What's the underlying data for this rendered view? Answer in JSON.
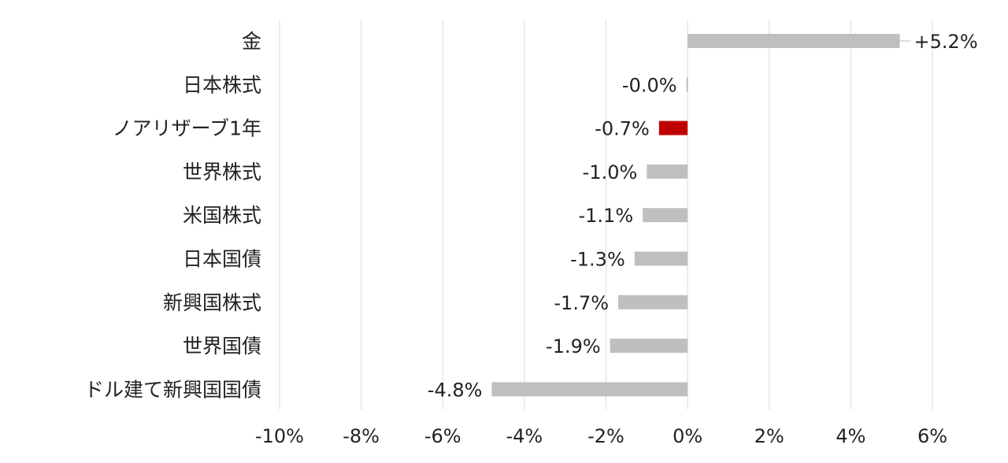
{
  "chart_data": {
    "type": "bar",
    "orientation": "horizontal",
    "title": "",
    "xlabel": "",
    "ylabel": "",
    "categories": [
      "金",
      "日本株式",
      "ノアリザーブ1年",
      "世界株式",
      "米国株式",
      "日本国債",
      "新興国株式",
      "世界国債",
      "ドル建て新興国国債"
    ],
    "values": [
      5.2,
      -0.03,
      -0.7,
      -1.0,
      -1.1,
      -1.3,
      -1.7,
      -1.9,
      -4.8
    ],
    "data_labels": [
      "+5.2%",
      "-0.0%",
      "-0.7%",
      "-1.0%",
      "-1.1%",
      "-1.3%",
      "-1.7%",
      "-1.9%",
      "-4.8%"
    ],
    "highlight_index": 2,
    "xlim": [
      -10,
      6
    ],
    "xticks": [
      -10,
      -8,
      -6,
      -4,
      -2,
      0,
      2,
      4,
      6
    ],
    "xtick_labels": [
      "-10%",
      "-8%",
      "-6%",
      "-4%",
      "-2%",
      "0%",
      "2%",
      "4%",
      "6%"
    ],
    "grid": "vertical",
    "legend": "none",
    "colors": {
      "bar": "#bfbfbf",
      "highlight": "#c00000",
      "grid": "#d9d9d9",
      "text": "#222222"
    }
  }
}
